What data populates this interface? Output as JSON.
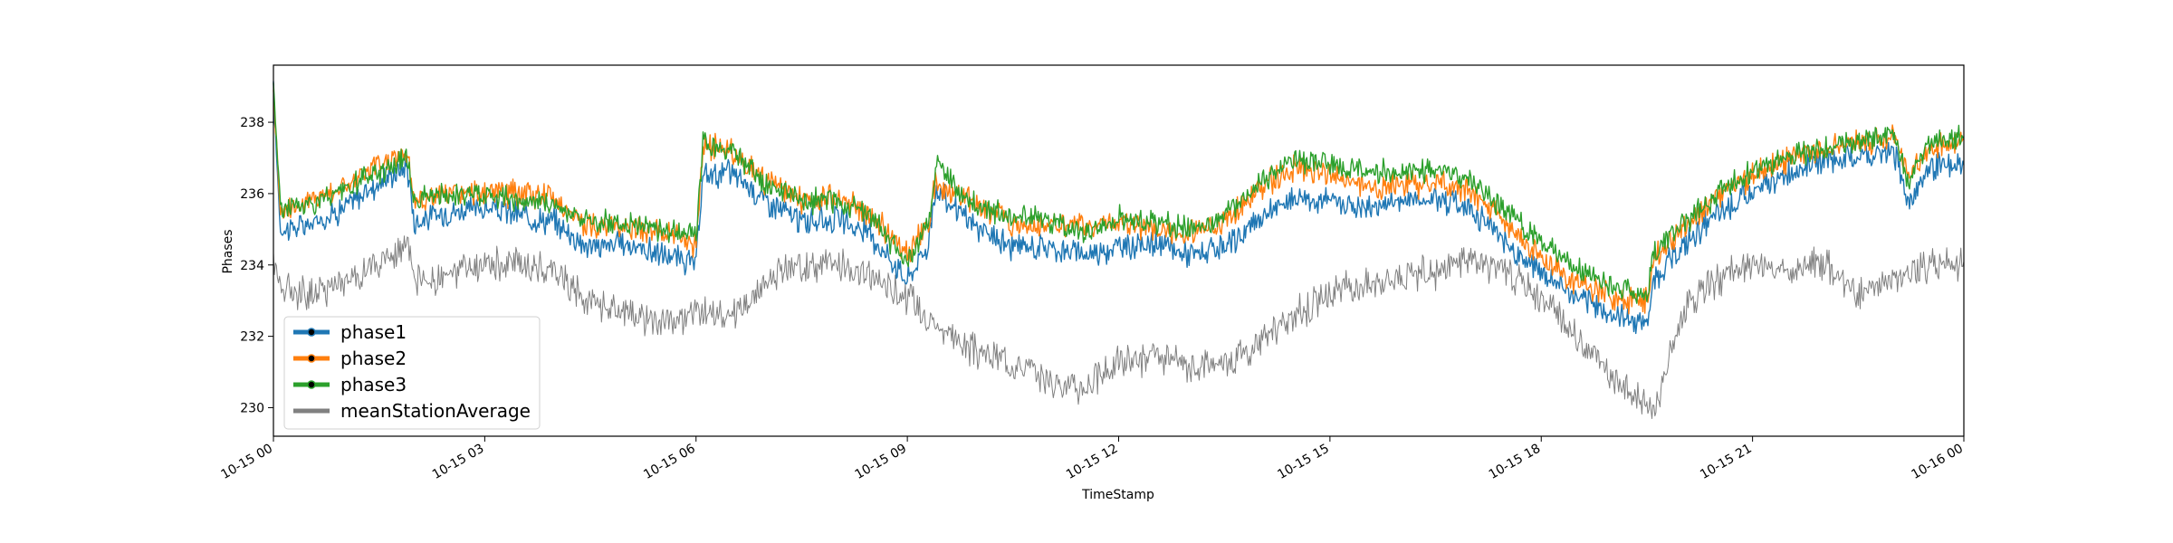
{
  "chart_data": {
    "type": "line",
    "xlabel": "TimeStamp",
    "ylabel": "Phases",
    "xlim": [
      "10-15 00:00",
      "10-16 00:00"
    ],
    "ylim": [
      229.2,
      239.6
    ],
    "x_ticks": [
      "10-15 00",
      "10-15 03",
      "10-15 06",
      "10-15 09",
      "10-15 12",
      "10-15 15",
      "10-15 18",
      "10-15 21",
      "10-16 00"
    ],
    "y_ticks": [
      230,
      232,
      234,
      236,
      238
    ],
    "grid": false,
    "legend": {
      "position": "lower-left",
      "entries": [
        "phase1",
        "phase2",
        "phase3",
        "meanStationAverage"
      ]
    },
    "series": [
      {
        "name": "phase1",
        "color": "#1f77b4",
        "marker": "dot",
        "x_hours": [
          0,
          0.1,
          0.5,
          1.0,
          1.5,
          1.9,
          2.0,
          2.5,
          3.0,
          3.5,
          4.0,
          4.4,
          4.5,
          5.0,
          5.5,
          6.0,
          6.1,
          6.5,
          7.0,
          7.5,
          8.0,
          8.5,
          9.0,
          9.3,
          9.4,
          10.0,
          10.5,
          11.0,
          11.5,
          12.0,
          12.5,
          13.0,
          13.5,
          14.0,
          14.5,
          15.0,
          15.5,
          16.0,
          16.5,
          17.0,
          17.5,
          18.0,
          18.5,
          19.0,
          19.5,
          19.6,
          20.0,
          20.5,
          21.0,
          21.5,
          22.0,
          22.5,
          23.0,
          23.2,
          23.5,
          24.0
        ],
        "values": [
          238.8,
          235.0,
          235.1,
          235.6,
          236.3,
          236.8,
          235.2,
          235.5,
          235.6,
          235.4,
          235.2,
          234.6,
          234.5,
          234.6,
          234.3,
          234.0,
          236.5,
          236.6,
          235.8,
          235.2,
          235.3,
          234.8,
          233.6,
          234.6,
          236.1,
          235.0,
          234.5,
          234.5,
          234.3,
          234.5,
          234.6,
          234.3,
          234.4,
          235.3,
          235.9,
          235.8,
          235.6,
          235.8,
          235.9,
          235.6,
          234.6,
          233.8,
          233.1,
          232.6,
          232.4,
          233.6,
          234.5,
          235.4,
          236.0,
          236.6,
          236.9,
          237.0,
          237.2,
          235.8,
          236.7,
          236.8
        ]
      },
      {
        "name": "phase2",
        "color": "#ff7f0e",
        "marker": "dot",
        "x_hours": [
          0,
          0.1,
          0.5,
          1.0,
          1.5,
          1.9,
          2.0,
          2.5,
          3.0,
          3.5,
          4.0,
          4.4,
          4.5,
          5.0,
          5.5,
          6.0,
          6.1,
          6.5,
          7.0,
          7.5,
          8.0,
          8.5,
          9.0,
          9.3,
          9.4,
          10.0,
          10.5,
          11.0,
          11.5,
          12.0,
          12.5,
          13.0,
          13.5,
          14.0,
          14.5,
          15.0,
          15.5,
          16.0,
          16.5,
          17.0,
          17.5,
          18.0,
          18.5,
          19.0,
          19.5,
          19.6,
          20.0,
          20.5,
          21.0,
          21.5,
          22.0,
          22.5,
          23.0,
          23.2,
          23.5,
          24.0
        ],
        "values": [
          239.0,
          235.5,
          235.8,
          236.2,
          236.8,
          237.2,
          235.8,
          236.0,
          236.0,
          236.0,
          235.9,
          235.1,
          235.1,
          235.1,
          234.9,
          234.6,
          237.3,
          237.2,
          236.3,
          235.8,
          235.9,
          235.4,
          234.3,
          235.2,
          236.3,
          235.7,
          235.2,
          235.1,
          235.1,
          235.2,
          235.0,
          234.9,
          235.2,
          236.2,
          236.7,
          236.5,
          236.2,
          236.2,
          236.3,
          236.1,
          235.2,
          234.2,
          233.5,
          233.1,
          233.0,
          234.2,
          235.0,
          235.9,
          236.5,
          237.0,
          237.3,
          237.4,
          237.6,
          236.5,
          237.3,
          237.5
        ]
      },
      {
        "name": "phase3",
        "color": "#2ca02c",
        "marker": "dot",
        "x_hours": [
          0,
          0.1,
          0.5,
          1.0,
          1.5,
          1.9,
          2.0,
          2.5,
          3.0,
          3.5,
          4.0,
          4.4,
          4.5,
          5.0,
          5.5,
          6.0,
          6.1,
          6.5,
          7.0,
          7.5,
          8.0,
          8.5,
          9.0,
          9.3,
          9.4,
          10.0,
          10.5,
          11.0,
          11.5,
          12.0,
          12.5,
          13.0,
          13.5,
          14.0,
          14.5,
          15.0,
          15.5,
          16.0,
          16.5,
          17.0,
          17.5,
          18.0,
          18.5,
          19.0,
          19.5,
          19.6,
          20.0,
          20.5,
          21.0,
          21.5,
          22.0,
          22.5,
          23.0,
          23.2,
          23.5,
          24.0
        ],
        "values": [
          239.1,
          235.6,
          235.7,
          236.1,
          236.6,
          237.0,
          235.9,
          235.9,
          236.0,
          235.8,
          235.7,
          235.3,
          235.2,
          235.2,
          235.0,
          234.8,
          237.4,
          237.2,
          236.2,
          235.8,
          235.8,
          235.3,
          234.1,
          235.2,
          236.8,
          235.6,
          235.4,
          235.2,
          234.9,
          235.3,
          235.2,
          235.0,
          235.4,
          236.3,
          236.9,
          236.8,
          236.6,
          236.6,
          236.7,
          236.4,
          235.5,
          234.6,
          233.9,
          233.4,
          233.1,
          234.4,
          235.1,
          236.0,
          236.6,
          237.0,
          237.3,
          237.4,
          237.8,
          236.3,
          237.4,
          237.6
        ]
      },
      {
        "name": "meanStationAverage",
        "color": "#808080",
        "marker": "none",
        "x_hours": [
          0,
          0.1,
          0.5,
          1.0,
          1.5,
          1.9,
          2.0,
          2.5,
          3.0,
          3.5,
          4.0,
          4.4,
          4.5,
          5.0,
          5.5,
          6.0,
          6.5,
          7.0,
          7.5,
          8.0,
          8.5,
          9.0,
          9.5,
          10.0,
          10.5,
          11.0,
          11.5,
          12.0,
          12.5,
          13.0,
          13.5,
          14.0,
          14.5,
          15.0,
          15.5,
          16.0,
          16.5,
          17.0,
          17.5,
          18.0,
          18.5,
          19.0,
          19.5,
          19.6,
          20.0,
          20.5,
          21.0,
          21.5,
          22.0,
          22.5,
          23.0,
          23.5,
          24.0
        ],
        "values": [
          234.2,
          233.4,
          233.2,
          233.5,
          234.0,
          234.6,
          233.5,
          233.7,
          234.0,
          234.0,
          233.9,
          233.1,
          233.0,
          232.6,
          232.4,
          232.6,
          232.5,
          233.6,
          234.0,
          234.0,
          233.7,
          233.1,
          232.2,
          231.5,
          231.3,
          230.8,
          230.5,
          231.3,
          231.4,
          231.1,
          231.3,
          231.8,
          232.6,
          233.2,
          233.5,
          233.7,
          233.8,
          234.2,
          233.8,
          233.1,
          232.0,
          230.9,
          230.0,
          229.9,
          232.6,
          233.6,
          234.0,
          233.8,
          234.1,
          233.2,
          233.6,
          234.0,
          234.1
        ]
      }
    ]
  }
}
